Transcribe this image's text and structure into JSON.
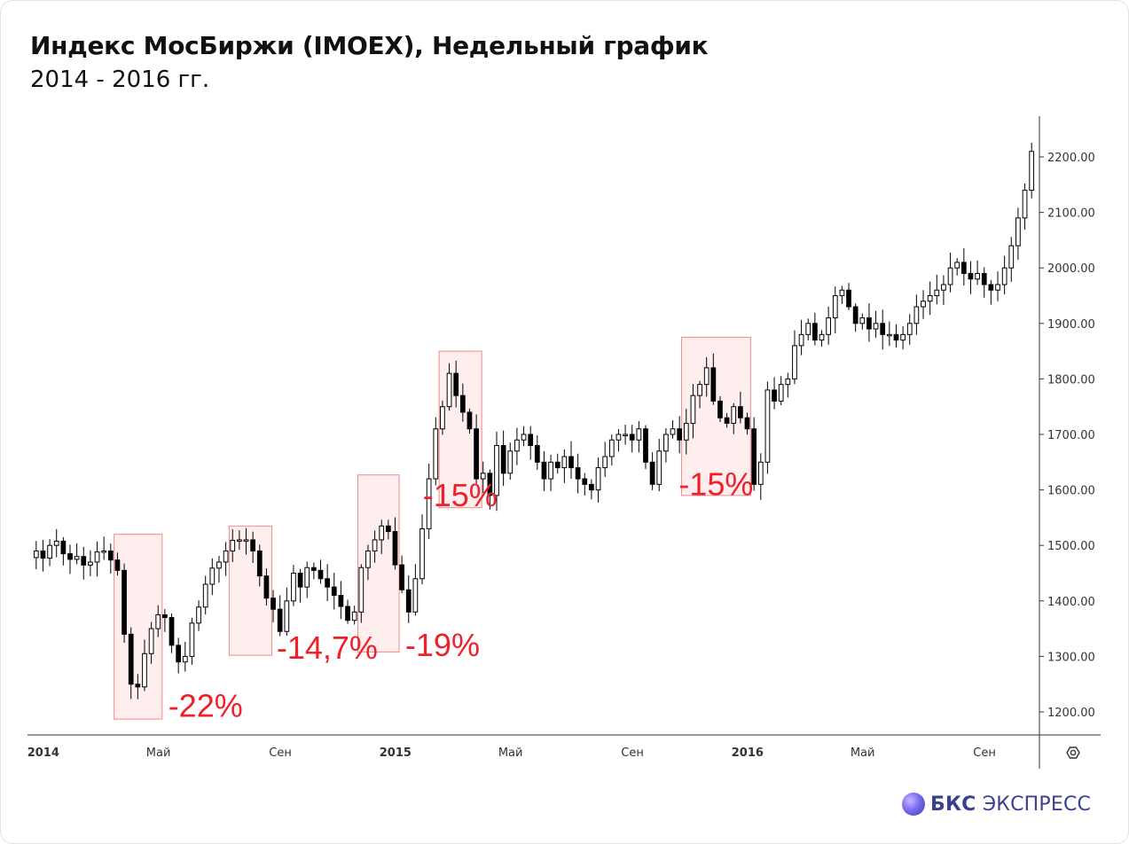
{
  "header": {
    "title": "Индекс МосБиржи (IMOEX), Недельный график",
    "subtitle": "2014 - 2016 гг."
  },
  "logo": {
    "brand": "БКС",
    "name": "ЭКСПРЕСС"
  },
  "icons": {
    "settings": "gear-icon"
  },
  "colors": {
    "up": "#ffffff",
    "down": "#000000",
    "annotation": "#f0202a",
    "box_fill": "#fde8e8",
    "box_stroke": "#f08a8a"
  },
  "chart_data": {
    "type": "candlestick",
    "y_ticks": [
      "1200.00",
      "1300.00",
      "1400.00",
      "1500.00",
      "1600.00",
      "1700.00",
      "1800.00",
      "1900.00",
      "2000.00",
      "2100.00",
      "2200.00"
    ],
    "ylim": [
      1165,
      2275
    ],
    "x_labels": [
      {
        "label": "2014",
        "t": 0,
        "bold": true
      },
      {
        "label": "Май",
        "t": 17,
        "bold": false
      },
      {
        "label": "Сен",
        "t": 35,
        "bold": false
      },
      {
        "label": "2015",
        "t": 52,
        "bold": true
      },
      {
        "label": "Май",
        "t": 69,
        "bold": false
      },
      {
        "label": "Сен",
        "t": 87,
        "bold": false
      },
      {
        "label": "2016",
        "t": 104,
        "bold": true
      },
      {
        "label": "Май",
        "t": 121,
        "bold": false
      },
      {
        "label": "Сен",
        "t": 139,
        "bold": false
      }
    ],
    "anchors": [
      [
        0,
        1490
      ],
      [
        2,
        1500
      ],
      [
        4,
        1485
      ],
      [
        6,
        1480
      ],
      [
        8,
        1470
      ],
      [
        10,
        1490
      ],
      [
        12,
        1455
      ],
      [
        13,
        1340
      ],
      [
        14,
        1250
      ],
      [
        15,
        1245
      ],
      [
        16,
        1305
      ],
      [
        17,
        1350
      ],
      [
        18,
        1375
      ],
      [
        19,
        1370
      ],
      [
        20,
        1320
      ],
      [
        21,
        1290
      ],
      [
        22,
        1300
      ],
      [
        23,
        1360
      ],
      [
        25,
        1430
      ],
      [
        27,
        1470
      ],
      [
        28,
        1490
      ],
      [
        30,
        1510
      ],
      [
        31,
        1510
      ],
      [
        32,
        1490
      ],
      [
        33,
        1445
      ],
      [
        34,
        1405
      ],
      [
        35,
        1385
      ],
      [
        36,
        1345
      ],
      [
        37,
        1400
      ],
      [
        38,
        1450
      ],
      [
        39,
        1425
      ],
      [
        40,
        1460
      ],
      [
        41,
        1455
      ],
      [
        42,
        1440
      ],
      [
        43,
        1425
      ],
      [
        44,
        1410
      ],
      [
        45,
        1390
      ],
      [
        46,
        1365
      ],
      [
        47,
        1380
      ],
      [
        48,
        1460
      ],
      [
        49,
        1490
      ],
      [
        50,
        1510
      ],
      [
        51,
        1535
      ],
      [
        52,
        1525
      ],
      [
        53,
        1465
      ],
      [
        54,
        1420
      ],
      [
        55,
        1380
      ],
      [
        56,
        1440
      ],
      [
        57,
        1530
      ],
      [
        58,
        1620
      ],
      [
        59,
        1710
      ],
      [
        60,
        1750
      ],
      [
        61,
        1810
      ],
      [
        62,
        1770
      ],
      [
        63,
        1740
      ],
      [
        64,
        1710
      ],
      [
        65,
        1620
      ],
      [
        66,
        1630
      ],
      [
        67,
        1590
      ],
      [
        68,
        1680
      ],
      [
        69,
        1630
      ],
      [
        70,
        1670
      ],
      [
        71,
        1690
      ],
      [
        72,
        1700
      ],
      [
        73,
        1680
      ],
      [
        74,
        1650
      ],
      [
        75,
        1620
      ],
      [
        76,
        1650
      ],
      [
        77,
        1640
      ],
      [
        78,
        1660
      ],
      [
        79,
        1640
      ],
      [
        80,
        1620
      ],
      [
        81,
        1610
      ],
      [
        82,
        1600
      ],
      [
        83,
        1640
      ],
      [
        84,
        1660
      ],
      [
        85,
        1690
      ],
      [
        86,
        1700
      ],
      [
        87,
        1700
      ],
      [
        88,
        1690
      ],
      [
        89,
        1710
      ],
      [
        90,
        1650
      ],
      [
        91,
        1610
      ],
      [
        92,
        1670
      ],
      [
        93,
        1700
      ],
      [
        94,
        1710
      ],
      [
        95,
        1690
      ],
      [
        96,
        1720
      ],
      [
        97,
        1770
      ],
      [
        98,
        1790
      ],
      [
        99,
        1820
      ],
      [
        100,
        1760
      ],
      [
        101,
        1730
      ],
      [
        102,
        1720
      ],
      [
        103,
        1750
      ],
      [
        104,
        1730
      ],
      [
        105,
        1710
      ],
      [
        106,
        1610
      ],
      [
        107,
        1650
      ],
      [
        108,
        1780
      ],
      [
        109,
        1760
      ],
      [
        110,
        1790
      ],
      [
        111,
        1800
      ],
      [
        112,
        1860
      ],
      [
        113,
        1880
      ],
      [
        114,
        1900
      ],
      [
        115,
        1870
      ],
      [
        116,
        1880
      ],
      [
        117,
        1910
      ],
      [
        118,
        1950
      ],
      [
        119,
        1960
      ],
      [
        120,
        1930
      ],
      [
        121,
        1900
      ],
      [
        122,
        1910
      ],
      [
        123,
        1890
      ],
      [
        124,
        1900
      ],
      [
        125,
        1880
      ],
      [
        126,
        1880
      ],
      [
        127,
        1870
      ],
      [
        128,
        1880
      ],
      [
        129,
        1900
      ],
      [
        130,
        1930
      ],
      [
        131,
        1940
      ],
      [
        132,
        1950
      ],
      [
        133,
        1960
      ],
      [
        134,
        1970
      ],
      [
        135,
        2000
      ],
      [
        136,
        2010
      ],
      [
        137,
        1990
      ],
      [
        138,
        1980
      ],
      [
        139,
        1990
      ],
      [
        140,
        1970
      ],
      [
        141,
        1960
      ],
      [
        142,
        1970
      ],
      [
        143,
        2000
      ],
      [
        144,
        2040
      ],
      [
        145,
        2090
      ],
      [
        146,
        2140
      ],
      [
        147,
        2210
      ]
    ],
    "annotations": [
      {
        "label": "-22%",
        "t0": 11.5,
        "t1": 18.6,
        "y_top": 1520,
        "y_bottom": 1187,
        "label_y": 1210,
        "label_t": 19.5
      },
      {
        "label": "-14,7%",
        "t0": 28.5,
        "t1": 34.8,
        "y_top": 1535,
        "y_bottom": 1302,
        "label_y": 1315,
        "label_t": 35.5
      },
      {
        "label": "-19%",
        "t0": 47.5,
        "t1": 53.6,
        "y_top": 1627,
        "y_bottom": 1308,
        "label_y": 1320,
        "label_t": 54.5
      },
      {
        "label": "-15%",
        "t0": 59.5,
        "t1": 65.8,
        "y_top": 1850,
        "y_bottom": 1568,
        "label_y": 1590,
        "label_t": 62.6,
        "center": true
      },
      {
        "label": "-15%",
        "t0": 95.3,
        "t1": 105.5,
        "y_top": 1875,
        "y_bottom": 1590,
        "label_y": 1610,
        "label_t": 100.4,
        "center": true
      }
    ]
  }
}
